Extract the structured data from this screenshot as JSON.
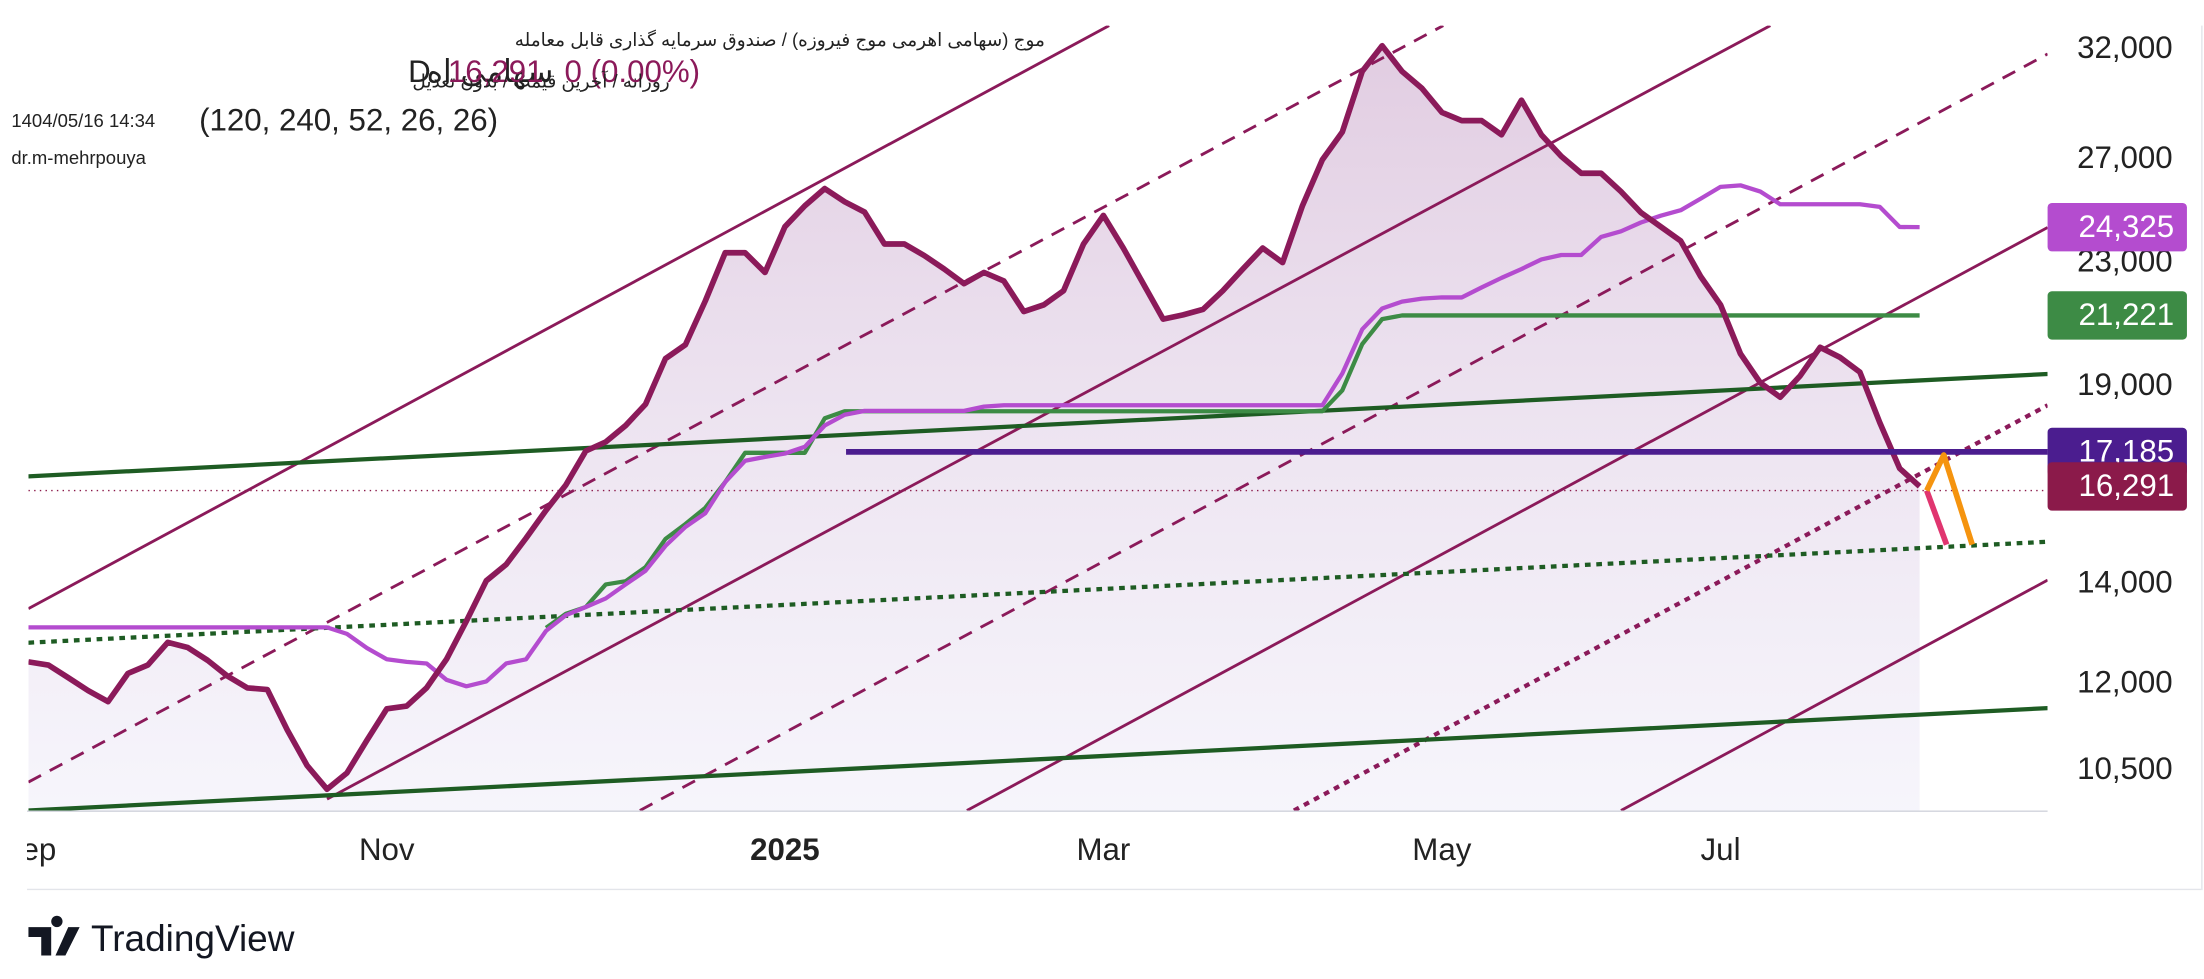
{
  "chart_data": {
    "type": "line",
    "header": {
      "symbol_line": "موج (سهامی اهرمی موج فیروزه) / صندوق سرمایه گذاری قابل معامله",
      "timeframe_line": "روزانه / آخرین قیمت / بدون تعدیل",
      "datetime": "1404/05/16 14:34",
      "author": "dr.m-mehrpouya",
      "symbol_short": "سهامی اه",
      "interval": "D",
      "last_price": "16,291",
      "change": "0 (0.00%)",
      "indicator_params": "(120, 240, 52, 26, 26)"
    },
    "brand": "TradingView",
    "categories": [
      "Sep",
      null,
      null,
      null,
      null,
      null,
      null,
      null,
      null,
      null,
      null,
      null,
      null,
      null,
      null,
      null,
      null,
      null,
      "Nov",
      null,
      null,
      null,
      null,
      null,
      null,
      null,
      null,
      null,
      null,
      null,
      null,
      null,
      null,
      null,
      null,
      null,
      null,
      null,
      "2025",
      null,
      null,
      null,
      null,
      null,
      null,
      null,
      null,
      null,
      null,
      null,
      null,
      null,
      null,
      null,
      "Mar",
      null,
      null,
      null,
      null,
      null,
      null,
      null,
      null,
      null,
      null,
      null,
      null,
      null,
      null,
      null,
      null,
      "May",
      null,
      null,
      null,
      null,
      null,
      null,
      null,
      null,
      null,
      null,
      null,
      null,
      null,
      "Jul",
      null,
      null,
      null,
      null,
      null,
      null,
      null,
      null,
      null,
      null,
      null,
      null,
      null,
      null,
      null,
      null
    ],
    "log_scale": true,
    "grid": false,
    "ylim": [
      9870,
      33220
    ],
    "yticks": [
      {
        "value": 10500,
        "label": "10,500"
      },
      {
        "value": 12000,
        "label": "12,000"
      },
      {
        "value": 14000,
        "label": "14,000"
      },
      {
        "value": 19000,
        "label": "19,000"
      },
      {
        "value": 23000,
        "label": "23,000"
      },
      {
        "value": 27000,
        "label": "27,000"
      },
      {
        "value": 32000,
        "label": "32,000"
      }
    ],
    "series": [
      {
        "color": "#8b1a5a",
        "area": true,
        "values": [
          12420,
          12360,
          12120,
          11880,
          11680,
          12200,
          12360,
          12800,
          12700,
          12450,
          12150,
          11930,
          11900,
          11180,
          10580,
          10200,
          10460,
          11000,
          11550,
          11600,
          11930,
          12470,
          13230,
          14080,
          14440,
          15040,
          15700,
          16330,
          17210,
          17450,
          17900,
          18500,
          19850,
          20280,
          21700,
          23380,
          23380,
          22680,
          24340,
          25140,
          25820,
          25300,
          24900,
          23700,
          23700,
          23280,
          22800,
          22290,
          22680,
          22380,
          21350,
          21570,
          22050,
          23700,
          24770,
          23550,
          22290,
          21100,
          21240,
          21420,
          22050,
          22800,
          23550,
          23030,
          25150,
          27000,
          28180,
          30950,
          32200,
          30950,
          30150,
          29050,
          28680,
          28680,
          28060,
          29600,
          28060,
          27140,
          26440,
          26440,
          25700,
          24880,
          24340,
          23810,
          22540,
          21570,
          20000,
          19120,
          18700,
          19330,
          20200,
          19890,
          19440,
          17980,
          16750,
          16291,
          null,
          null,
          null,
          null,
          null,
          null
        ]
      },
      {
        "color": "#b44ccf",
        "values": [
          13100,
          13100,
          13100,
          13100,
          13100,
          13100,
          13100,
          13100,
          13100,
          13100,
          13100,
          13100,
          13100,
          13100,
          13100,
          13100,
          12970,
          12690,
          12470,
          12420,
          12390,
          12080,
          11960,
          12050,
          12390,
          12470,
          13030,
          13350,
          13520,
          13700,
          14000,
          14300,
          14860,
          15300,
          15630,
          16400,
          16950,
          17050,
          17140,
          17320,
          17900,
          18200,
          18310,
          18310,
          18310,
          18310,
          18310,
          18310,
          18430,
          18470,
          18470,
          18470,
          18470,
          18470,
          18470,
          18470,
          18470,
          18470,
          18470,
          18470,
          18470,
          18470,
          18470,
          18470,
          18470,
          18470,
          19400,
          20770,
          21450,
          21680,
          21780,
          21820,
          21820,
          22160,
          22490,
          22800,
          23140,
          23300,
          23300,
          23960,
          24170,
          24500,
          24760,
          24970,
          25420,
          25890,
          25950,
          25700,
          25200,
          25200,
          25200,
          25200,
          25200,
          25100,
          24330,
          24325,
          null,
          null,
          null,
          null,
          null,
          null
        ]
      },
      {
        "color": "#3d8b45",
        "values": [
          null,
          null,
          null,
          null,
          null,
          null,
          null,
          null,
          null,
          null,
          null,
          null,
          null,
          null,
          null,
          null,
          null,
          null,
          null,
          null,
          null,
          null,
          null,
          null,
          null,
          null,
          13090,
          13380,
          13520,
          14000,
          14070,
          14380,
          15020,
          15370,
          15760,
          16400,
          17160,
          17160,
          17160,
          17160,
          18100,
          18300,
          18300,
          18300,
          18300,
          18300,
          18300,
          18300,
          18300,
          18300,
          18300,
          18300,
          18300,
          18300,
          18300,
          18300,
          18300,
          18300,
          18300,
          18300,
          18300,
          18300,
          18300,
          18300,
          18300,
          18300,
          18900,
          20300,
          21100,
          21221,
          21221,
          21221,
          21221,
          21221,
          21221,
          21221,
          21221,
          21221,
          21221,
          21221,
          21221,
          21221,
          21221,
          21221,
          21221,
          21221,
          21221,
          21221,
          21221,
          21221,
          21221,
          21221,
          21221,
          21221,
          21221,
          21221,
          null,
          null,
          null,
          null,
          null,
          null
        ]
      }
    ],
    "levels": [
      {
        "value": 17185,
        "color": "#4b1d8f"
      }
    ],
    "price_tags": [
      {
        "value": 24325,
        "label": "24,325",
        "color": "#b44ccf"
      },
      {
        "value": 21221,
        "label": "21,221",
        "color": "#3d8b45"
      },
      {
        "value": 17185,
        "label": "17,185",
        "color": "#4b1d8f"
      },
      {
        "value": 16291,
        "label": "16,291",
        "color": "#8b1a4a"
      }
    ]
  }
}
